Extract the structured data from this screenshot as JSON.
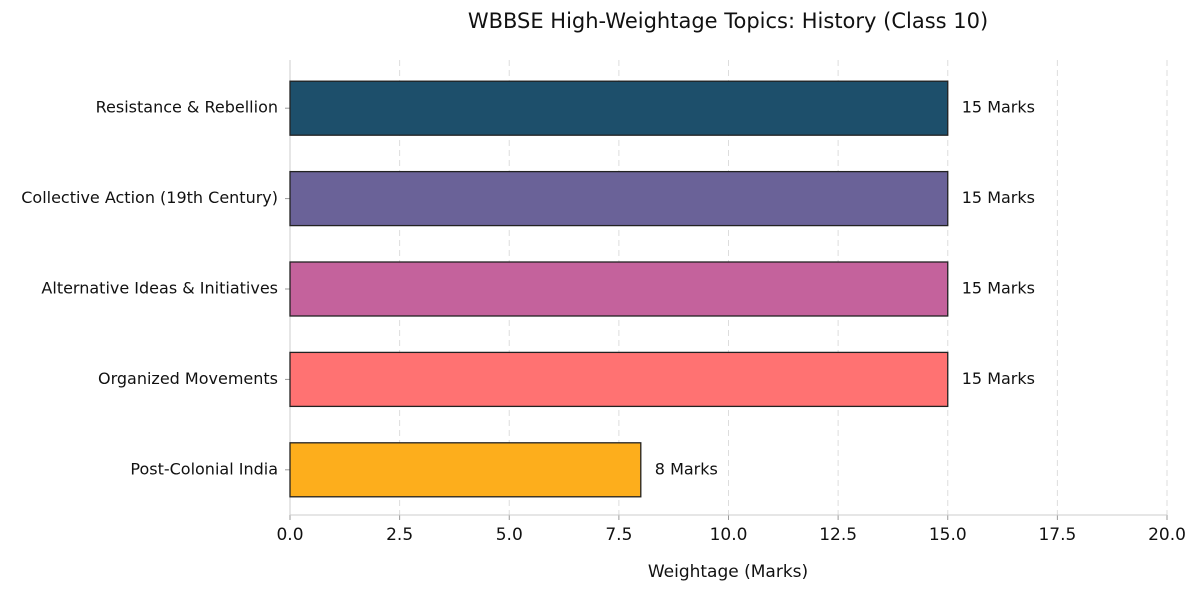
{
  "chart_data": {
    "type": "bar",
    "orientation": "horizontal",
    "title": "WBBSE High-Weightage Topics: History (Class 10)",
    "x_label": "Weightage (Marks)",
    "categories": [
      "Resistance & Rebellion",
      "Collective Action (19th Century)",
      "Alternative Ideas & Initiatives",
      "Organized Movements",
      "Post-Colonial India"
    ],
    "values": [
      15,
      15,
      15,
      15,
      8
    ],
    "value_labels": [
      "15 Marks",
      "15 Marks",
      "15 Marks",
      "15 Marks",
      "8 Marks"
    ],
    "colors": [
      "#1d4f6b",
      "#6a6298",
      "#c4629c",
      "#ff7272",
      "#fdae1c"
    ],
    "xlim": [
      0,
      20
    ],
    "xticks": [
      {
        "value": 0,
        "label": "0.0"
      },
      2.5,
      {
        "value": 5,
        "label": "5.0"
      },
      7.5,
      {
        "value": 10,
        "label": "10.0"
      },
      12.5,
      {
        "value": 15,
        "label": "15.0"
      },
      17.5,
      {
        "value": 20,
        "label": "20.0"
      }
    ],
    "grid": true
  }
}
